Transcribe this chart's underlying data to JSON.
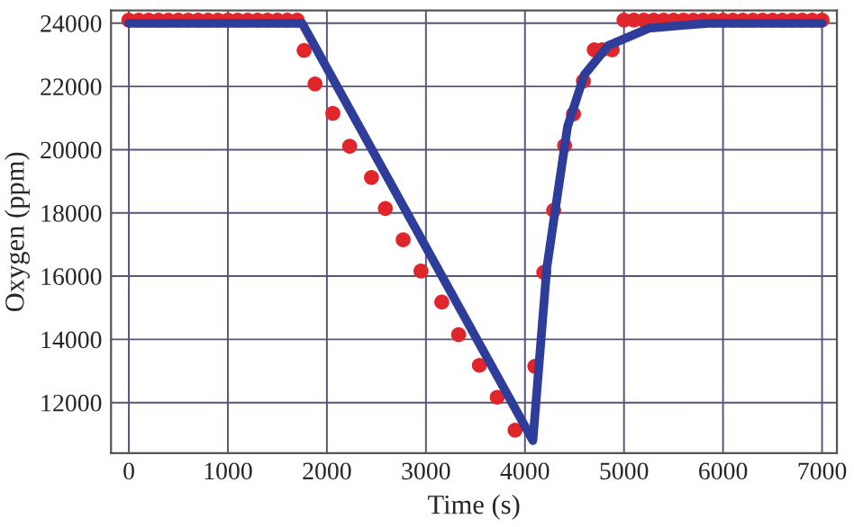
{
  "chart_data": {
    "type": "line",
    "xlabel": "Time (s)",
    "ylabel": "Oxygen (ppm)",
    "xlim": [
      -180,
      7150
    ],
    "ylim": [
      10400,
      24400
    ],
    "xticks": [
      0,
      1000,
      2000,
      3000,
      4000,
      5000,
      6000,
      7000
    ],
    "yticks": [
      12000,
      14000,
      16000,
      18000,
      20000,
      22000,
      24000
    ],
    "grid": true,
    "legend": false,
    "series": [
      {
        "type": "scatter",
        "color": "#e0262a",
        "marker": "circle",
        "x": [
          0,
          100,
          200,
          300,
          400,
          500,
          600,
          700,
          800,
          900,
          1000,
          1100,
          1200,
          1300,
          1400,
          1500,
          1600,
          1700,
          1770,
          1880,
          2060,
          2230,
          2450,
          2590,
          2770,
          2950,
          3160,
          3330,
          3540,
          3720,
          3900,
          4100,
          4190,
          4290,
          4400,
          4490,
          4590,
          4700,
          4780,
          4880,
          5000,
          5100,
          5200,
          5300,
          5400,
          5500,
          5600,
          5700,
          5800,
          5900,
          6000,
          6100,
          6200,
          6300,
          6400,
          6500,
          6600,
          6700,
          6800,
          6900,
          7000
        ],
        "values": [
          24100,
          24100,
          24100,
          24100,
          24100,
          24100,
          24100,
          24100,
          24100,
          24100,
          24100,
          24100,
          24100,
          24100,
          24100,
          24100,
          24100,
          24100,
          23140,
          22080,
          21150,
          20110,
          19120,
          18140,
          17150,
          16160,
          15180,
          14150,
          13180,
          12170,
          11130,
          13150,
          16120,
          18080,
          20130,
          21130,
          22170,
          23160,
          23160,
          23160,
          24100,
          24100,
          24100,
          24100,
          24100,
          24100,
          24100,
          24100,
          24100,
          24100,
          24100,
          24100,
          24100,
          24100,
          24100,
          24100,
          24100,
          24100,
          24100,
          24100,
          24100
        ]
      },
      {
        "color": "#2e3d9a",
        "line_style": "solid",
        "x": [
          0,
          1750,
          4080,
          4220,
          4310,
          4430,
          4600,
          4840,
          5250,
          5850,
          7000
        ],
        "values": [
          24000,
          24000,
          10800,
          16250,
          18180,
          20730,
          22370,
          23290,
          23840,
          24000,
          24000
        ]
      }
    ]
  }
}
